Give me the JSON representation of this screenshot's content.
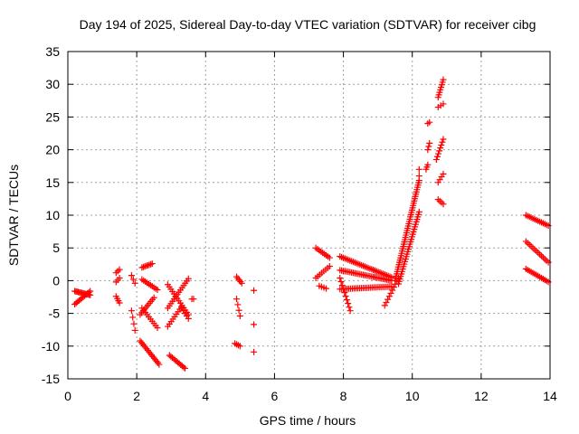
{
  "chart_data": {
    "type": "scatter",
    "title": "Day 194 of 2025, Sidereal Day-to-day VTEC variation (SDTVAR) for receiver cibg",
    "xlabel": "GPS time / hours",
    "ylabel": "SDTVAR / TECUs",
    "xlim": [
      0,
      14
    ],
    "ylim": [
      -15,
      35
    ],
    "xticks": [
      0,
      2,
      4,
      6,
      8,
      10,
      12,
      14
    ],
    "yticks": [
      -15,
      -10,
      -5,
      0,
      5,
      10,
      15,
      20,
      25,
      30,
      35
    ],
    "xtick_labels": [
      "0",
      "2",
      "4",
      "6",
      "8",
      "10",
      "12",
      "14"
    ],
    "ytick_labels": [
      "-15",
      "-10",
      "-5",
      "0",
      "5",
      "10",
      "15",
      "20",
      "25",
      "30",
      "35"
    ],
    "grid": true,
    "marker": "+",
    "color": "#ff0000",
    "segments": [
      {
        "x": [
          0.2,
          0.65
        ],
        "y": [
          -1.6,
          -2.2
        ],
        "n": 14
      },
      {
        "x": [
          0.2,
          0.65
        ],
        "y": [
          -3.6,
          -1.6
        ],
        "n": 12
      },
      {
        "x": [
          1.4,
          1.5
        ],
        "y": [
          1.2,
          1.7
        ],
        "n": 3
      },
      {
        "x": [
          1.4,
          1.5
        ],
        "y": [
          -0.2,
          0.4
        ],
        "n": 3
      },
      {
        "x": [
          1.4,
          1.5
        ],
        "y": [
          -2.4,
          -3.4
        ],
        "n": 4
      },
      {
        "x": [
          1.85,
          1.95
        ],
        "y": [
          0.8,
          -0.4
        ],
        "n": 3
      },
      {
        "x": [
          1.85,
          1.95
        ],
        "y": [
          -4.6,
          -7.6
        ],
        "n": 4
      },
      {
        "x": [
          2.15,
          2.45
        ],
        "y": [
          2.0,
          2.6
        ],
        "n": 8
      },
      {
        "x": [
          2.15,
          2.6
        ],
        "y": [
          0.2,
          -1.4
        ],
        "n": 10
      },
      {
        "x": [
          2.1,
          2.5
        ],
        "y": [
          -5.2,
          -2.6
        ],
        "n": 10
      },
      {
        "x": [
          2.15,
          2.6
        ],
        "y": [
          -4.2,
          -7.2
        ],
        "n": 10
      },
      {
        "x": [
          2.1,
          2.65
        ],
        "y": [
          -9.2,
          -12.8
        ],
        "n": 16
      },
      {
        "x": [
          2.9,
          3.5
        ],
        "y": [
          -4.2,
          0.3
        ],
        "n": 14
      },
      {
        "x": [
          2.9,
          3.5
        ],
        "y": [
          -0.6,
          -5.2
        ],
        "n": 14
      },
      {
        "x": [
          2.9,
          3.3
        ],
        "y": [
          -7.0,
          -4.0
        ],
        "n": 9
      },
      {
        "x": [
          3.3,
          3.5
        ],
        "y": [
          -4.2,
          -5.8
        ],
        "n": 5
      },
      {
        "x": [
          2.95,
          3.4
        ],
        "y": [
          -11.4,
          -13.4
        ],
        "n": 12
      },
      {
        "x": [
          3.6,
          3.65
        ],
        "y": [
          -2.8,
          -2.8
        ],
        "n": 2
      },
      {
        "x": [
          4.9,
          5.05
        ],
        "y": [
          0.6,
          -0.4
        ],
        "n": 5
      },
      {
        "x": [
          4.9,
          5.0
        ],
        "y": [
          -2.8,
          -5.4
        ],
        "n": 4
      },
      {
        "x": [
          4.85,
          5.0
        ],
        "y": [
          -9.6,
          -10.0
        ],
        "n": 4
      },
      {
        "x": [
          5.4,
          5.45
        ],
        "y": [
          -1.5,
          -1.5
        ],
        "n": 1
      },
      {
        "x": [
          5.4,
          5.45
        ],
        "y": [
          -6.7,
          -6.7
        ],
        "n": 1
      },
      {
        "x": [
          5.4,
          5.45
        ],
        "y": [
          -10.9,
          -10.9
        ],
        "n": 1
      },
      {
        "x": [
          7.2,
          7.6
        ],
        "y": [
          5.0,
          3.5
        ],
        "n": 9
      },
      {
        "x": [
          7.2,
          7.6
        ],
        "y": [
          0.4,
          2.2
        ],
        "n": 8
      },
      {
        "x": [
          7.3,
          7.5
        ],
        "y": [
          -0.8,
          -1.2
        ],
        "n": 4
      },
      {
        "x": [
          7.9,
          9.4
        ],
        "y": [
          3.7,
          0.5
        ],
        "n": 32
      },
      {
        "x": [
          7.9,
          9.4
        ],
        "y": [
          1.6,
          0.0
        ],
        "n": 32
      },
      {
        "x": [
          7.9,
          9.4
        ],
        "y": [
          -1.3,
          -0.9
        ],
        "n": 30
      },
      {
        "x": [
          7.9,
          8.2
        ],
        "y": [
          0.4,
          -4.6
        ],
        "n": 10
      },
      {
        "x": [
          9.2,
          9.6
        ],
        "y": [
          -3.8,
          0.4
        ],
        "n": 10
      },
      {
        "x": [
          9.5,
          10.2
        ],
        "y": [
          0.0,
          15.3
        ],
        "n": 45
      },
      {
        "x": [
          9.6,
          10.2
        ],
        "y": [
          -0.5,
          10.5
        ],
        "n": 30
      },
      {
        "x": [
          10.2,
          10.2
        ],
        "y": [
          16.0,
          17.0
        ],
        "n": 2
      },
      {
        "x": [
          10.4,
          10.45
        ],
        "y": [
          17.0,
          17.7
        ],
        "n": 3
      },
      {
        "x": [
          10.45,
          10.5
        ],
        "y": [
          24.0,
          24.2
        ],
        "n": 2
      },
      {
        "x": [
          10.45,
          10.5
        ],
        "y": [
          20.0,
          21.0
        ],
        "n": 3
      },
      {
        "x": [
          10.75,
          10.9
        ],
        "y": [
          28.0,
          30.7
        ],
        "n": 8
      },
      {
        "x": [
          10.75,
          10.9
        ],
        "y": [
          26.5,
          27.0
        ],
        "n": 3
      },
      {
        "x": [
          10.7,
          10.9
        ],
        "y": [
          18.5,
          21.6
        ],
        "n": 8
      },
      {
        "x": [
          10.75,
          10.9
        ],
        "y": [
          15.0,
          16.3
        ],
        "n": 4
      },
      {
        "x": [
          10.75,
          10.9
        ],
        "y": [
          12.4,
          11.7
        ],
        "n": 4
      },
      {
        "x": [
          13.3,
          13.95
        ],
        "y": [
          10.0,
          8.4
        ],
        "n": 14
      },
      {
        "x": [
          13.3,
          13.95
        ],
        "y": [
          6.0,
          2.8
        ],
        "n": 14
      },
      {
        "x": [
          13.3,
          13.95
        ],
        "y": [
          1.8,
          -0.2
        ],
        "n": 14
      }
    ]
  }
}
